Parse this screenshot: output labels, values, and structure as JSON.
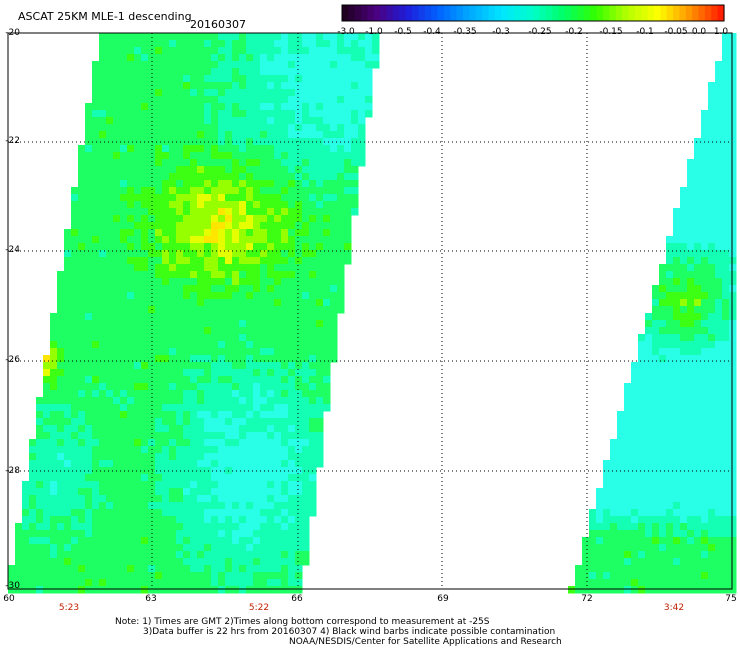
{
  "title": "ASCAT 25KM MLE-1 descending",
  "date": "20160307",
  "colorbar": {
    "labels": [
      "-3.0",
      "-1.0",
      "-0.5",
      "-0.4",
      "-0.35",
      "-0.3",
      "-0.25",
      "-0.2",
      "-0.15",
      "-0.1",
      "-0.05",
      "0.0",
      "1.0"
    ],
    "colors": [
      "#200020",
      "#4b0080",
      "#1e1edc",
      "#0064ff",
      "#00aaff",
      "#00e6ff",
      "#00ffc8",
      "#00ff64",
      "#32ff00",
      "#b4ff00",
      "#ffff00",
      "#ff9600",
      "#ff1e00"
    ]
  },
  "map": {
    "lon_ticks": [
      "60",
      "63",
      "66",
      "69",
      "72",
      "75"
    ],
    "lat_ticks": [
      "-20",
      "-22",
      "-24",
      "-26",
      "-28",
      "-30"
    ],
    "time_labels": [
      "5:23",
      "5:22",
      "3:42"
    ],
    "time_label_color": "#c02000",
    "grid": true
  },
  "notes": {
    "line1": "Note: 1) Times are GMT 2)Times along bottom correspond to measurement at -25S",
    "line2": "3)Data buffer is 22 hrs from 20160307 4) Black wind barbs indicate possible contamination",
    "line3": "NOAA/NESDIS/Center for Satellite Applications and Research"
  }
}
